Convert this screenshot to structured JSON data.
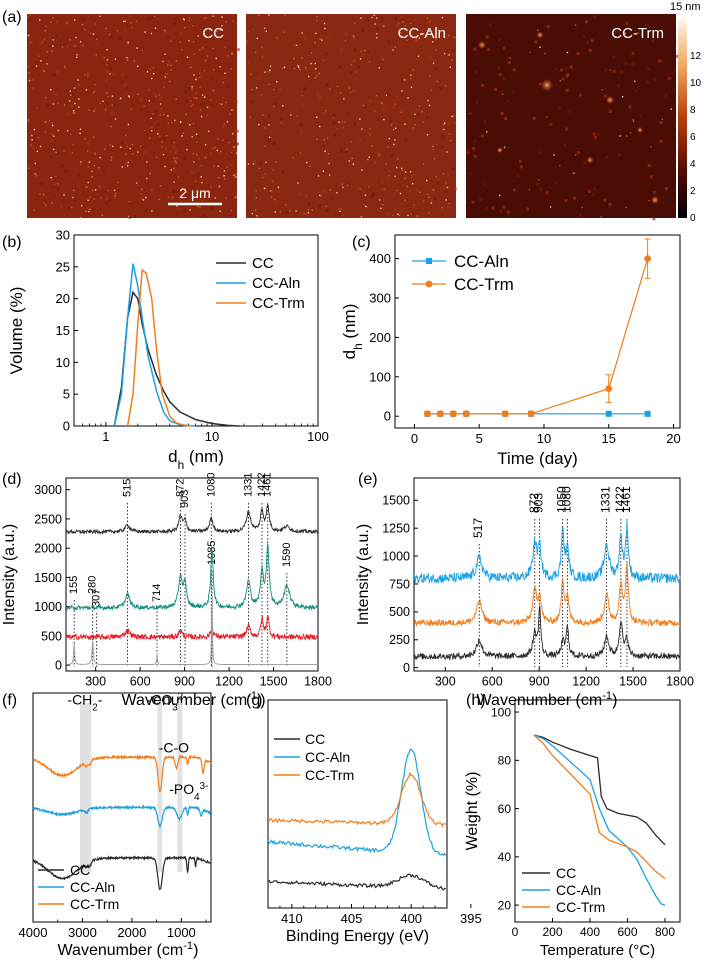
{
  "colors": {
    "cc": "#2b2b2b",
    "aln": "#1ba1e2",
    "trm": "#f07d1a",
    "teal": "#138a7a",
    "red": "#e01f26",
    "gray": "#9a9a9a"
  },
  "panel_labels": {
    "a": "(a)",
    "b": "(b)",
    "c": "(c)",
    "d": "(d)",
    "e": "(e)",
    "f": "(f)",
    "g": "(g)",
    "h": "(h)"
  },
  "afm": {
    "images": [
      {
        "label": "CC"
      },
      {
        "label": "CC-Aln"
      },
      {
        "label": "CC-Trm"
      }
    ],
    "scale_bar": "2 μm",
    "colorbar_unit": "15 nm",
    "colorbar_ticks": [
      "12",
      "10",
      "8",
      "6",
      "4",
      "2",
      "0"
    ]
  },
  "chart_data": [
    {
      "id": "b",
      "type": "line",
      "xlabel": "d",
      "xlabel_sub": "h",
      "xlabel_unit": " (nm)",
      "ylabel": "Volume  (%)",
      "xscale": "log",
      "xlim": [
        0.5,
        100
      ],
      "ylim": [
        0,
        30
      ],
      "xticks": [
        1,
        10,
        100
      ],
      "xtick_labels": [
        "1",
        "10",
        "100"
      ],
      "yticks": [
        0,
        5,
        10,
        15,
        20,
        25,
        30
      ],
      "ytick_labels": [
        "0",
        "5",
        "10",
        "15",
        "20",
        "25",
        "30"
      ],
      "legend_loc": "top-right",
      "series": [
        {
          "name": "CC",
          "color_key": "cc",
          "x": [
            1.2,
            1.4,
            1.6,
            1.8,
            2.0,
            2.2,
            2.5,
            3.0,
            3.5,
            4.0,
            5.0,
            7.0,
            10.0,
            14.0,
            18.0
          ],
          "y": [
            0,
            6,
            17,
            21,
            20,
            16,
            12,
            8,
            5.5,
            3.8,
            2.2,
            1,
            0.4,
            0.1,
            0
          ]
        },
        {
          "name": "CC-Aln",
          "color_key": "aln",
          "x": [
            1.2,
            1.4,
            1.6,
            1.8,
            2.0,
            2.2,
            2.5,
            3.0,
            3.5,
            4.0,
            5.0,
            7.0
          ],
          "y": [
            0,
            5,
            17,
            25.5,
            22,
            17,
            11,
            5.5,
            2.2,
            0.8,
            0.2,
            0
          ]
        },
        {
          "name": "CC-Trm",
          "color_key": "trm",
          "x": [
            1.6,
            1.8,
            2.0,
            2.2,
            2.4,
            2.7,
            3.0,
            3.4,
            4.0,
            4.6,
            5.5,
            6.5
          ],
          "y": [
            0,
            5,
            16,
            24.5,
            24,
            20,
            12,
            5,
            1.5,
            0.5,
            0.1,
            0
          ]
        }
      ]
    },
    {
      "id": "c",
      "type": "line",
      "xlabel": "Time  (day)",
      "ylabel": "d",
      "ylabel_sub": "h",
      "ylabel_unit": " (nm)",
      "xlim": [
        -1.5,
        20.5
      ],
      "ylim": [
        -30,
        460
      ],
      "xticks": [
        0,
        5,
        10,
        15,
        20
      ],
      "xtick_labels": [
        "0",
        "5",
        "10",
        "15",
        "20"
      ],
      "yticks": [
        0,
        100,
        200,
        300,
        400
      ],
      "ytick_labels": [
        "0",
        "100",
        "200",
        "300",
        "400"
      ],
      "legend_loc": "top-left",
      "series": [
        {
          "name": "CC-Aln",
          "color_key": "aln",
          "marker": "square",
          "x": [
            1,
            2,
            3,
            4,
            7,
            9,
            15,
            18
          ],
          "y": [
            6,
            6,
            6,
            6,
            6,
            6,
            6,
            6
          ]
        },
        {
          "name": "CC-Trm",
          "color_key": "trm",
          "marker": "circle",
          "x": [
            1,
            2,
            3,
            4,
            7,
            9,
            15,
            18
          ],
          "y": [
            6,
            6,
            6,
            6,
            6,
            6,
            70,
            400
          ],
          "yerr": [
            0,
            0,
            0,
            0,
            0,
            0,
            35,
            50
          ]
        }
      ]
    },
    {
      "id": "d",
      "type": "line",
      "xlabel": "Wavenumber (cm",
      "xlabel_sup": "-1",
      "xlabel_unit": ")",
      "ylabel": "Intensity (a.u.)",
      "xlim": [
        100,
        1800
      ],
      "ylim": [
        -100,
        3200
      ],
      "xticks": [
        300,
        600,
        900,
        1200,
        1500,
        1800
      ],
      "xtick_labels": [
        "300",
        "600",
        "900",
        "1200",
        "1500",
        "1800"
      ],
      "yticks": [
        0,
        500,
        1000,
        1500,
        2000,
        2500,
        3000
      ],
      "ytick_labels": [
        "0",
        "500",
        "1000",
        "1500",
        "2000",
        "2500",
        "3000"
      ],
      "peaks": [
        {
          "x": 155,
          "label": "155"
        },
        {
          "x": 280,
          "label": "280"
        },
        {
          "x": 307,
          "label": "307"
        },
        {
          "x": 515,
          "label": "515"
        },
        {
          "x": 714,
          "label": "714"
        },
        {
          "x": 872,
          "label": "872"
        },
        {
          "x": 903,
          "label": "903"
        },
        {
          "x": 1080,
          "label": "1080"
        },
        {
          "x": 1085,
          "label": "1085"
        },
        {
          "x": 1331,
          "label": "1331"
        },
        {
          "x": 1422,
          "label": "1422"
        },
        {
          "x": 1461,
          "label": "1461"
        },
        {
          "x": 1590,
          "label": "1590"
        }
      ],
      "series": [
        {
          "name": "top (black)",
          "color_key": "cc",
          "baseline": 2280,
          "noise": 30,
          "peaks": [
            [
              515,
              120,
              18
            ],
            [
              872,
              260,
              14
            ],
            [
              903,
              180,
              12
            ],
            [
              1080,
              230,
              14
            ],
            [
              1331,
              330,
              18
            ],
            [
              1422,
              350,
              12
            ],
            [
              1461,
              420,
              12
            ],
            [
              1590,
              90,
              25
            ]
          ]
        },
        {
          "name": "middle (teal)",
          "color_key": "teal",
          "baseline": 980,
          "noise": 35,
          "peaks": [
            [
              515,
              230,
              18
            ],
            [
              872,
              520,
              15
            ],
            [
              903,
              380,
              12
            ],
            [
              1085,
              1000,
              10
            ],
            [
              1331,
              450,
              16
            ],
            [
              1422,
              600,
              12
            ],
            [
              1461,
              1000,
              12
            ],
            [
              1590,
              380,
              22
            ]
          ]
        },
        {
          "name": "lower (red)",
          "color_key": "red",
          "baseline": 480,
          "noise": 45,
          "peaks": [
            [
              515,
              120,
              18
            ],
            [
              872,
              120,
              12
            ],
            [
              1085,
              140,
              12
            ],
            [
              1331,
              180,
              15
            ],
            [
              1422,
              300,
              10
            ],
            [
              1461,
              350,
              10
            ]
          ]
        },
        {
          "name": "bottom (gray)",
          "color_key": "gray",
          "baseline": 10,
          "noise": 0,
          "peaks": [
            [
              155,
              380,
              4
            ],
            [
              280,
              420,
              5
            ],
            [
              714,
              180,
              3
            ],
            [
              1085,
              1320,
              3
            ]
          ]
        }
      ]
    },
    {
      "id": "e",
      "type": "line",
      "xlabel": "Wavenumber (cm",
      "xlabel_sup": "-1",
      "xlabel_unit": ")",
      "ylabel": "Intensity (a.u.)",
      "xlim": [
        100,
        1800
      ],
      "ylim": [
        -30,
        1700
      ],
      "xticks": [
        300,
        600,
        900,
        1200,
        1500,
        1800
      ],
      "xtick_labels": [
        "300",
        "600",
        "900",
        "1200",
        "1500",
        "1800"
      ],
      "yticks": [
        0,
        250,
        500,
        750,
        1000,
        1250,
        1500
      ],
      "ytick_labels": [
        "0",
        "250",
        "500",
        "750",
        "1000",
        "1250",
        "1500"
      ],
      "peaks": [
        {
          "x": 517,
          "label": "517"
        },
        {
          "x": 872,
          "label": "872"
        },
        {
          "x": 903,
          "label": "903"
        },
        {
          "x": 1050,
          "label": "1050"
        },
        {
          "x": 1080,
          "label": "1080"
        },
        {
          "x": 1331,
          "label": "1331"
        },
        {
          "x": 1422,
          "label": "1422"
        },
        {
          "x": 1461,
          "label": "1461"
        }
      ],
      "series": [
        {
          "name": "top (blue)",
          "color_key": "aln",
          "baseline": 800,
          "noise": 45,
          "peaks": [
            [
              517,
              180,
              22
            ],
            [
              872,
              300,
              16
            ],
            [
              903,
              250,
              12
            ],
            [
              1050,
              420,
              10
            ],
            [
              1080,
              250,
              12
            ],
            [
              1331,
              300,
              18
            ],
            [
              1422,
              350,
              12
            ],
            [
              1461,
              450,
              10
            ]
          ]
        },
        {
          "name": "middle (orange)",
          "color_key": "trm",
          "baseline": 400,
          "noise": 28,
          "peaks": [
            [
              517,
              200,
              20
            ],
            [
              872,
              280,
              15
            ],
            [
              903,
              220,
              12
            ],
            [
              1050,
              380,
              10
            ],
            [
              1080,
              220,
              12
            ],
            [
              1331,
              250,
              16
            ],
            [
              1422,
              340,
              12
            ],
            [
              1461,
              520,
              10
            ]
          ]
        },
        {
          "name": "bottom (black)",
          "color_key": "cc",
          "baseline": 100,
          "noise": 28,
          "peaks": [
            [
              517,
              150,
              20
            ],
            [
              872,
              200,
              15
            ],
            [
              903,
              420,
              8
            ],
            [
              1050,
              120,
              12
            ],
            [
              1080,
              250,
              10
            ],
            [
              1331,
              180,
              16
            ],
            [
              1422,
              320,
              12
            ],
            [
              1461,
              160,
              10
            ]
          ]
        }
      ]
    },
    {
      "id": "f",
      "type": "line",
      "xlabel": "Wavenumber (cm",
      "xlabel_sup": "-1",
      "xlabel_unit": ")",
      "xlim": [
        4000,
        400
      ],
      "ylim": [
        0,
        100
      ],
      "xticks": [
        4000,
        3000,
        2000,
        1000
      ],
      "xtick_labels": [
        "4000",
        "3000",
        "2000",
        "1000"
      ],
      "bands": [
        [
          3050,
          2820
        ],
        [
          1480,
          1390
        ],
        [
          1080,
          980
        ]
      ],
      "annotations": [
        {
          "x": 2950,
          "y": 95,
          "text": "-CH",
          "sub": "2",
          "tail": "-"
        },
        {
          "x": 1300,
          "y": 95,
          "text": "-CO",
          "sub": "3",
          "sup": "2-"
        },
        {
          "x": 1150,
          "y": 74,
          "text": "-C-O"
        },
        {
          "x": 850,
          "y": 56,
          "text": "-PO",
          "sub": "4",
          "sup": "3-"
        }
      ],
      "legend_loc": "bottom-left",
      "series": [
        {
          "name": "CC",
          "color_key": "cc",
          "baseline": 28,
          "features": [
            [
              3400,
              -9,
              300
            ],
            [
              2920,
              -2,
              25
            ],
            [
              2850,
              -2,
              25
            ],
            [
              1430,
              -14,
              45
            ],
            [
              874,
              -6,
              15
            ],
            [
              712,
              -4,
              12
            ]
          ]
        },
        {
          "name": "CC-Aln",
          "color_key": "aln",
          "baseline": 50,
          "features": [
            [
              3400,
              -3,
              300
            ],
            [
              2920,
              -1.5,
              25
            ],
            [
              1430,
              -8,
              45
            ],
            [
              1040,
              -5,
              50
            ],
            [
              874,
              -3,
              15
            ],
            [
              600,
              -3,
              20
            ]
          ]
        },
        {
          "name": "CC-Trm",
          "color_key": "trm",
          "baseline": 72,
          "features": [
            [
              3400,
              -8,
              300
            ],
            [
              2920,
              -2,
              25
            ],
            [
              2850,
              -2,
              25
            ],
            [
              1430,
              -15,
              40
            ],
            [
              1100,
              -5,
              25
            ],
            [
              874,
              -3,
              15
            ],
            [
              560,
              -6,
              20
            ]
          ]
        }
      ]
    },
    {
      "id": "g",
      "type": "line",
      "xlabel": "Binding Energy (eV)",
      "xlim": [
        412,
        397
      ],
      "ylim": [
        0,
        100
      ],
      "xticks": [
        410,
        405,
        400,
        395
      ],
      "xtick_labels": [
        "410",
        "405",
        "400",
        "395"
      ],
      "legend_loc": "top-left",
      "series": [
        {
          "name": "CC",
          "color_key": "cc",
          "baseline": 9,
          "slope": 0.25,
          "noise": 0.8,
          "peak": [
            400.0,
            6,
            1.1
          ]
        },
        {
          "name": "CC-Aln",
          "color_key": "aln",
          "baseline": 25,
          "slope": 0.45,
          "noise": 0.9,
          "peak": [
            400.0,
            50,
            0.8
          ]
        },
        {
          "name": "CC-Trm",
          "color_key": "trm",
          "baseline": 40,
          "slope": 0.15,
          "noise": 0.8,
          "peak": [
            400.0,
            24,
            0.8
          ]
        }
      ]
    },
    {
      "id": "h",
      "type": "line",
      "xlabel": "Temperature  (",
      "xlabel_unit": "°C)",
      "ylabel": "Weight  (%)",
      "xlim": [
        0,
        880
      ],
      "ylim": [
        13,
        105
      ],
      "xticks": [
        0,
        200,
        400,
        600,
        800
      ],
      "xtick_labels": [
        "0",
        "200",
        "400",
        "600",
        "800"
      ],
      "yticks": [
        20,
        40,
        60,
        80,
        100
      ],
      "ytick_labels": [
        "20",
        "40",
        "60",
        "80",
        "100"
      ],
      "legend_loc": "bottom-left",
      "series": [
        {
          "name": "CC",
          "color_key": "cc",
          "x": [
            100,
            150,
            200,
            300,
            400,
            440,
            460,
            490,
            550,
            650,
            700,
            750,
            800
          ],
          "y": [
            90.5,
            89.5,
            87.5,
            84.5,
            82,
            81,
            65,
            60,
            58,
            56.5,
            54,
            49,
            45
          ]
        },
        {
          "name": "CC-Aln",
          "color_key": "aln",
          "x": [
            100,
            150,
            200,
            300,
            400,
            450,
            500,
            600,
            650,
            700,
            750,
            780,
            800
          ],
          "y": [
            90.5,
            89,
            86,
            79,
            72,
            60,
            51,
            44,
            39,
            31,
            24,
            20.5,
            20
          ]
        },
        {
          "name": "CC-Trm",
          "color_key": "trm",
          "x": [
            100,
            150,
            200,
            300,
            400,
            450,
            500,
            600,
            650,
            700,
            750,
            800
          ],
          "y": [
            90.5,
            87,
            82,
            74,
            66,
            50,
            47,
            44,
            42,
            38,
            34,
            31
          ]
        }
      ]
    }
  ]
}
